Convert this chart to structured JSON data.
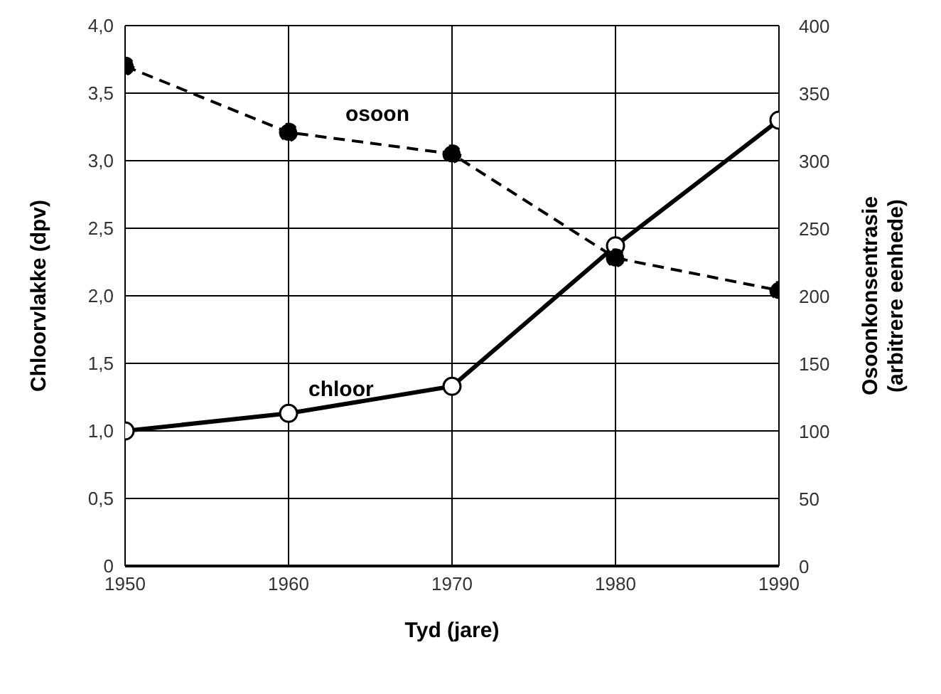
{
  "chart_data": {
    "type": "line",
    "xlabel": "Tyd (jare)",
    "ylabel": "Chloorvlakke (dpv)",
    "y2label": "Osoonkonsentrasie\n(arbitrere eenhede)",
    "x": [
      1950,
      1960,
      1970,
      1980,
      1990
    ],
    "series": [
      {
        "name": "chloor",
        "color": "#000000",
        "values": [
          1.0,
          1.13,
          1.33,
          2.37,
          3.3
        ],
        "line_style": "solid",
        "marker": "circle"
      },
      {
        "name": "osoon",
        "color": "#000000",
        "values": [
          370,
          321,
          305,
          228,
          204
        ],
        "axis": "y2",
        "line_style": "dashed",
        "marker": "circle"
      }
    ],
    "xlim": [
      1950,
      1990
    ],
    "xticks": [
      1950,
      1960,
      1970,
      1980,
      1990
    ],
    "ylim": [
      0,
      4
    ],
    "yticks": [
      {
        "value": 0,
        "label": "0"
      },
      {
        "value": 0.5,
        "label": "0,5"
      },
      {
        "value": 1,
        "label": "1,0"
      },
      {
        "value": 1.5,
        "label": "1,5"
      },
      {
        "value": 2,
        "label": "2,0"
      },
      {
        "value": 2.5,
        "label": "2,5"
      },
      {
        "value": 3,
        "label": "3,0"
      },
      {
        "value": 3.5,
        "label": "3,5"
      },
      {
        "value": 4,
        "label": "4,0"
      }
    ],
    "y2lim": [
      0,
      400
    ],
    "y2ticks": [
      0,
      50,
      100,
      150,
      200,
      250,
      300,
      350,
      400
    ],
    "grid": true
  }
}
